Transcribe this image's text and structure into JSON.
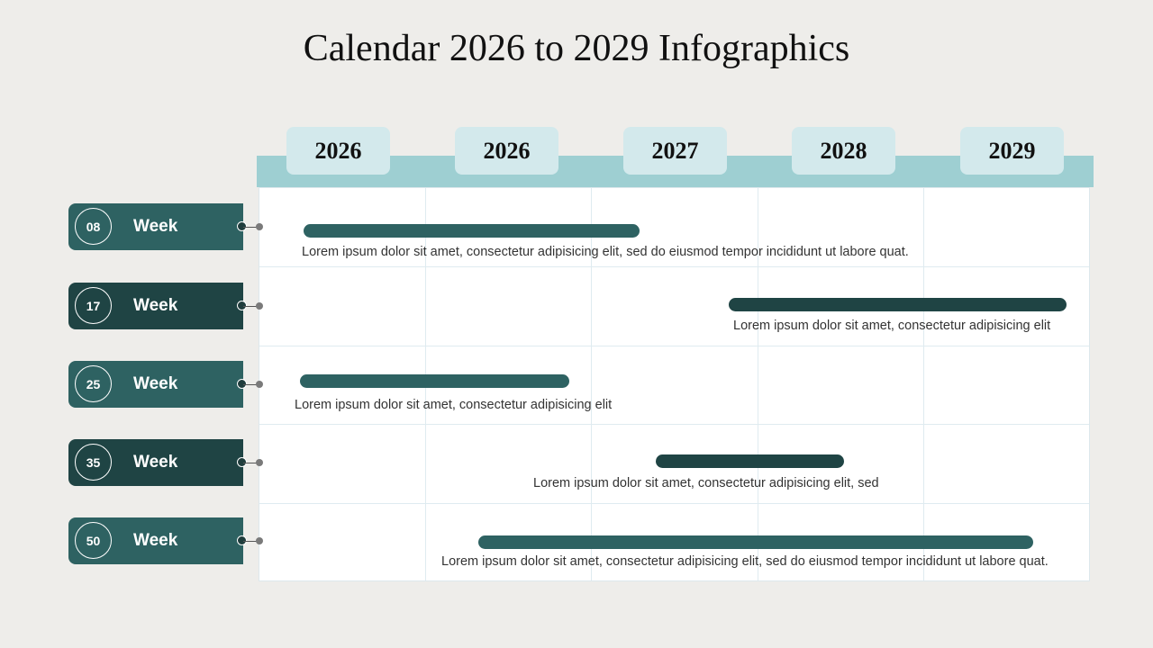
{
  "title": "Calendar 2026 to 2029 Infographics",
  "years": [
    {
      "label": "2026"
    },
    {
      "label": "2026"
    },
    {
      "label": "2027"
    },
    {
      "label": "2028"
    },
    {
      "label": "2029"
    }
  ],
  "rows": [
    {
      "number": "08",
      "label": "Week",
      "color": "#2e6262",
      "bar_color": "#2e6262",
      "bar_start": 0.27,
      "bar_end": 2.29,
      "description": "Lorem ipsum dolor sit amet, consectetur adipisicing elit, sed do eiusmod tempor incididunt ut labore quat."
    },
    {
      "number": "17",
      "label": "Week",
      "color": "#1f4444",
      "bar_color": "#1f4444",
      "bar_start": 2.83,
      "bar_end": 4.86,
      "description": "Lorem ipsum dolor sit amet, consectetur adipisicing elit"
    },
    {
      "number": "25",
      "label": "Week",
      "color": "#2e6262",
      "bar_color": "#2e6262",
      "bar_start": 0.25,
      "bar_end": 1.87,
      "description": "Lorem ipsum dolor sit amet, consectetur adipisicing elit"
    },
    {
      "number": "35",
      "label": "Week",
      "color": "#1f4444",
      "bar_color": "#1f4444",
      "bar_start": 2.39,
      "bar_end": 3.52,
      "description": "Lorem ipsum dolor sit amet, consectetur adipisicing elit, sed"
    },
    {
      "number": "50",
      "label": "Week",
      "color": "#2e6262",
      "bar_color": "#2e6262",
      "bar_start": 1.32,
      "bar_end": 4.66,
      "description": "Lorem ipsum dolor sit amet, consectetur adipisicing elit, sed do eiusmod tempor incididunt ut labore quat."
    }
  ],
  "colors": {
    "header_band": "#9ecfd2",
    "year_tab": "#d3e9ec",
    "background": "#eeedea"
  }
}
